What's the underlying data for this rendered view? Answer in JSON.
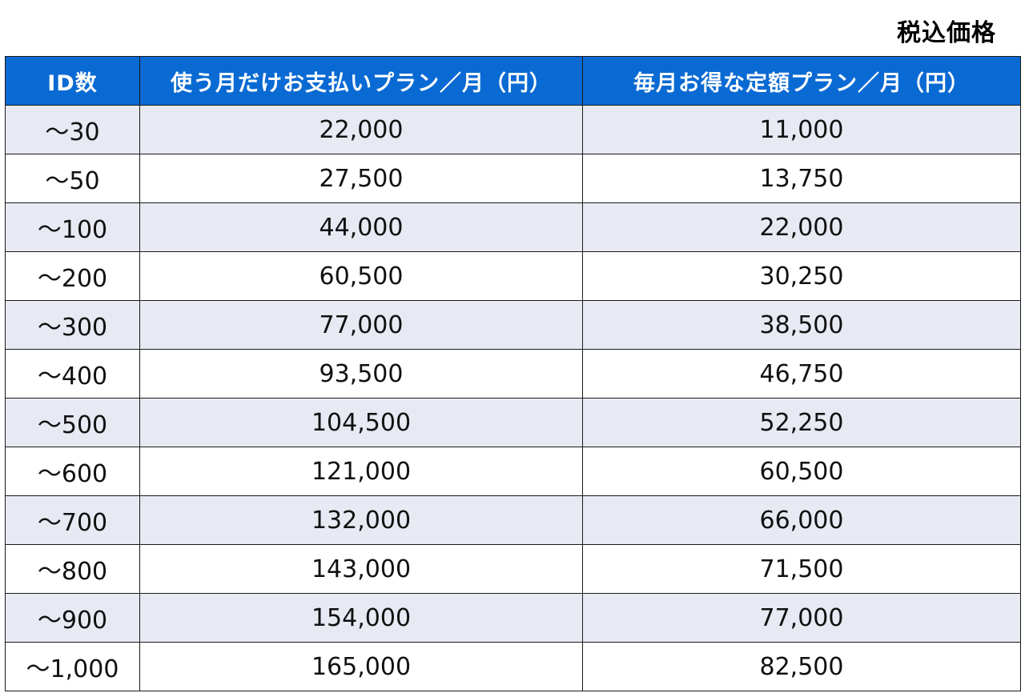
{
  "tax_note": "税込価格",
  "table": {
    "headers": {
      "id_count": "ID数",
      "pay_as_you_go": "使う月だけお支払いプラン／月（円）",
      "monthly_flat": "毎月お得な定額プラン／月（円）"
    },
    "rows": [
      {
        "ids": "～30",
        "pay_as_you_go": "22,000",
        "monthly_flat": "11,000"
      },
      {
        "ids": "～50",
        "pay_as_you_go": "27,500",
        "monthly_flat": "13,750"
      },
      {
        "ids": "～100",
        "pay_as_you_go": "44,000",
        "monthly_flat": "22,000"
      },
      {
        "ids": "～200",
        "pay_as_you_go": "60,500",
        "monthly_flat": "30,250"
      },
      {
        "ids": "～300",
        "pay_as_you_go": "77,000",
        "monthly_flat": "38,500"
      },
      {
        "ids": "～400",
        "pay_as_you_go": "93,500",
        "monthly_flat": "46,750"
      },
      {
        "ids": "～500",
        "pay_as_you_go": "104,500",
        "monthly_flat": "52,250"
      },
      {
        "ids": "～600",
        "pay_as_you_go": "121,000",
        "monthly_flat": "60,500"
      },
      {
        "ids": "～700",
        "pay_as_you_go": "132,000",
        "monthly_flat": "66,000"
      },
      {
        "ids": "～800",
        "pay_as_you_go": "143,000",
        "monthly_flat": "71,500"
      },
      {
        "ids": "～900",
        "pay_as_you_go": "154,000",
        "monthly_flat": "77,000"
      },
      {
        "ids": "～1,000",
        "pay_as_you_go": "165,000",
        "monthly_flat": "82,500"
      }
    ]
  },
  "colors": {
    "header_background": "#0a6ad3",
    "header_text": "#ffffff",
    "stripe_background": "#e7e9f3",
    "border": "#1a1a1a"
  }
}
